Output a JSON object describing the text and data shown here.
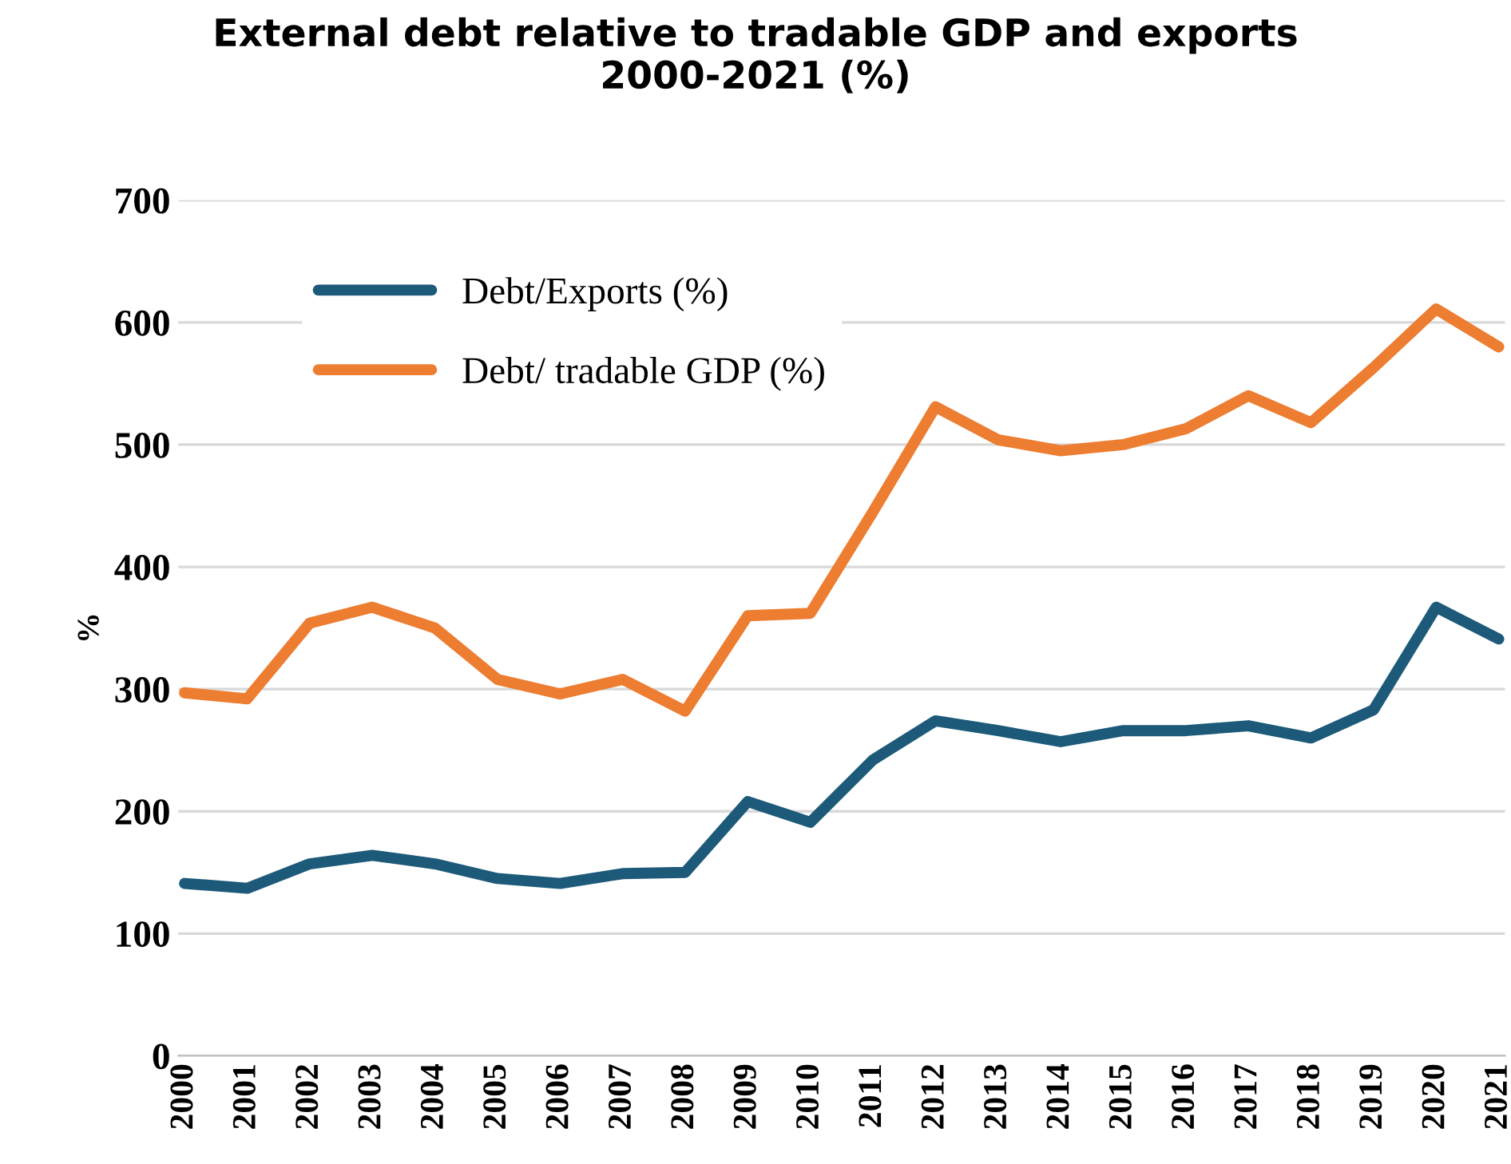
{
  "chart_data": {
    "type": "line",
    "title": "External debt relative to tradable GDP and exports\n2000-2021 (%)",
    "ylabel": "%",
    "categories": [
      "2000",
      "2001",
      "2002",
      "2003",
      "2004",
      "2005",
      "2006",
      "2007",
      "2008",
      "2009",
      "2010",
      "2011",
      "2012",
      "2013",
      "2014",
      "2015",
      "2016",
      "2017",
      "2018",
      "2019",
      "2020",
      "2021"
    ],
    "series": [
      {
        "name": "Debt/Exports (%)",
        "color": "#1d5a7a",
        "values": [
          141,
          137,
          157,
          164,
          157,
          145,
          141,
          149,
          150,
          208,
          191,
          242,
          274,
          266,
          257,
          266,
          266,
          270,
          260,
          283,
          367,
          341
        ]
      },
      {
        "name": "Debt/ tradable GDP (%)",
        "color": "#ed7d31",
        "values": [
          297,
          292,
          354,
          367,
          350,
          308,
          296,
          308,
          282,
          360,
          362,
          445,
          531,
          504,
          495,
          500,
          513,
          540,
          518,
          563,
          611,
          580
        ]
      }
    ],
    "ylim": [
      0,
      700
    ],
    "yticks": [
      0,
      100,
      200,
      300,
      400,
      500,
      600,
      700
    ],
    "grid": "y",
    "legend": "top left",
    "marker": "none",
    "line_style": "solid"
  }
}
